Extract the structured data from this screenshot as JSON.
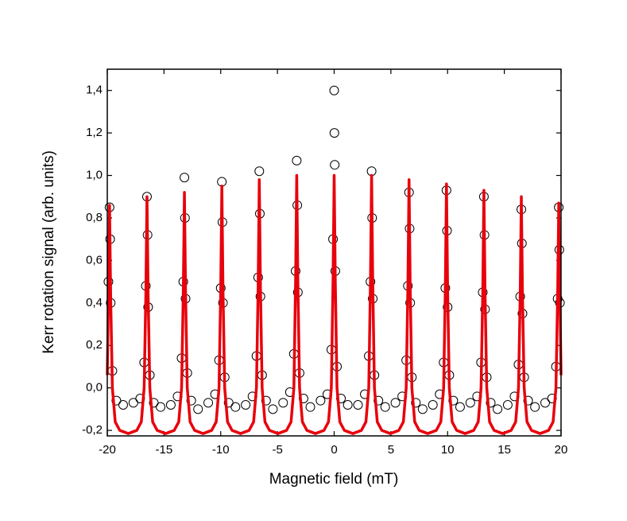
{
  "chart_data": {
    "type": "scatter",
    "x_label": "Magnetic field (mT)",
    "y_label": "Kerr rotation signal (arb. units)",
    "xlim": [
      -20,
      20
    ],
    "ylim": [
      -0.226,
      1.5
    ],
    "xticks": [
      -20,
      -15,
      -10,
      -5,
      0,
      5,
      10,
      15,
      20
    ],
    "yticks": [
      {
        "value": -0.2,
        "label": "-0,2"
      },
      {
        "value": 0,
        "label": "0,0"
      },
      {
        "value": 0.2,
        "label": "0,2"
      },
      {
        "value": 0.4,
        "label": "0,4"
      },
      {
        "value": 0.6,
        "label": "0,6"
      },
      {
        "value": 0.8,
        "label": "0,8"
      },
      {
        "value": 1.0,
        "label": "1,0"
      },
      {
        "value": 1.2,
        "label": "1,2"
      },
      {
        "value": 1.4,
        "label": "1,4"
      }
    ],
    "series": [
      {
        "type": "scatter",
        "color": "#000000",
        "x": [
          -19.9,
          -19.8,
          -19.75,
          -19.7,
          -19.55,
          -19.2,
          -18.6,
          -17.7,
          -17.1,
          -16.75,
          -16.6,
          -16.5,
          -16.45,
          -16.4,
          -16.25,
          -15.9,
          -15.3,
          -14.4,
          -13.8,
          -13.45,
          -13.3,
          -13.2,
          -13.15,
          -13.1,
          -12.95,
          -12.6,
          -12.0,
          -11.1,
          -10.5,
          -10.15,
          -10.0,
          -9.9,
          -9.85,
          -9.8,
          -9.65,
          -9.3,
          -8.7,
          -7.8,
          -7.2,
          -6.85,
          -6.7,
          -6.6,
          -6.55,
          -6.5,
          -6.35,
          -6.0,
          -5.4,
          -4.5,
          -3.9,
          -3.55,
          -3.4,
          -3.3,
          -3.25,
          -3.2,
          -3.05,
          -2.7,
          -2.1,
          -1.2,
          -0.6,
          -0.25,
          -0.1,
          0,
          0.02,
          0.05,
          0.1,
          0.25,
          0.6,
          1.2,
          2.1,
          2.7,
          3.05,
          3.2,
          3.3,
          3.35,
          3.4,
          3.55,
          3.9,
          4.5,
          5.4,
          6.0,
          6.35,
          6.5,
          6.6,
          6.65,
          6.7,
          6.85,
          7.2,
          7.8,
          8.7,
          9.3,
          9.65,
          9.8,
          9.9,
          9.95,
          10.0,
          10.15,
          10.5,
          11.1,
          12.0,
          12.6,
          12.95,
          13.1,
          13.2,
          13.25,
          13.3,
          13.45,
          13.8,
          14.4,
          15.3,
          15.9,
          16.25,
          16.4,
          16.5,
          16.55,
          16.6,
          16.75,
          17.1,
          17.7,
          18.6,
          19.2,
          19.55,
          19.7,
          19.8,
          19.85,
          19.9
        ],
        "values": [
          0.5,
          0.85,
          0.7,
          0.4,
          0.08,
          -0.06,
          -0.08,
          -0.07,
          -0.05,
          0.12,
          0.48,
          0.9,
          0.72,
          0.38,
          0.06,
          -0.07,
          -0.09,
          -0.08,
          -0.04,
          0.14,
          0.5,
          0.99,
          0.8,
          0.42,
          0.07,
          -0.06,
          -0.1,
          -0.07,
          -0.03,
          0.13,
          0.47,
          0.97,
          0.78,
          0.4,
          0.05,
          -0.07,
          -0.09,
          -0.08,
          -0.04,
          0.15,
          0.52,
          1.02,
          0.82,
          0.43,
          0.06,
          -0.06,
          -0.1,
          -0.07,
          -0.02,
          0.16,
          0.55,
          1.07,
          0.86,
          0.45,
          0.07,
          -0.05,
          -0.09,
          -0.06,
          -0.03,
          0.18,
          0.7,
          1.4,
          1.2,
          1.05,
          0.55,
          0.1,
          -0.05,
          -0.08,
          -0.08,
          -0.03,
          0.15,
          0.5,
          1.02,
          0.8,
          0.42,
          0.06,
          -0.06,
          -0.09,
          -0.07,
          -0.04,
          0.13,
          0.48,
          0.92,
          0.75,
          0.4,
          0.05,
          -0.07,
          -0.1,
          -0.08,
          -0.03,
          0.12,
          0.47,
          0.93,
          0.74,
          0.38,
          0.06,
          -0.06,
          -0.09,
          -0.07,
          -0.04,
          0.12,
          0.45,
          0.9,
          0.72,
          0.37,
          0.05,
          -0.07,
          -0.1,
          -0.08,
          -0.04,
          0.11,
          0.43,
          0.84,
          0.68,
          0.35,
          0.05,
          -0.06,
          -0.09,
          -0.07,
          -0.05,
          0.1,
          0.42,
          0.85,
          0.65,
          0.4
        ]
      },
      {
        "type": "line",
        "color": "#e8000b",
        "x": [
          -20,
          -19.9,
          -19.8,
          -19.7,
          -19.55,
          -19.3,
          -18.9,
          -18.15,
          -17.4,
          -17.0,
          -16.75,
          -16.6,
          -16.5,
          -16.4,
          -16.25,
          -16.0,
          -15.6,
          -14.85,
          -14.1,
          -13.7,
          -13.45,
          -13.3,
          -13.2,
          -13.1,
          -12.95,
          -12.7,
          -12.3,
          -11.55,
          -10.8,
          -10.4,
          -10.15,
          -10.0,
          -9.9,
          -9.8,
          -9.65,
          -9.4,
          -9.0,
          -8.25,
          -7.5,
          -7.1,
          -6.85,
          -6.7,
          -6.6,
          -6.5,
          -6.35,
          -6.1,
          -5.7,
          -4.95,
          -4.2,
          -3.8,
          -3.55,
          -3.4,
          -3.3,
          -3.2,
          -3.05,
          -2.8,
          -2.4,
          -1.65,
          -0.9,
          -0.5,
          -0.25,
          -0.1,
          0,
          0.1,
          0.25,
          0.5,
          0.9,
          1.65,
          2.4,
          2.8,
          3.05,
          3.2,
          3.3,
          3.4,
          3.55,
          3.8,
          4.2,
          4.95,
          5.7,
          6.1,
          6.35,
          6.5,
          6.6,
          6.7,
          6.85,
          7.1,
          7.5,
          8.25,
          9.0,
          9.4,
          9.65,
          9.8,
          9.9,
          10.0,
          10.15,
          10.4,
          10.8,
          11.55,
          12.3,
          12.7,
          12.95,
          13.1,
          13.2,
          13.3,
          13.45,
          13.7,
          14.1,
          14.85,
          15.6,
          16.0,
          16.25,
          16.4,
          16.5,
          16.6,
          16.75,
          17.0,
          17.4,
          18.15,
          18.9,
          19.3,
          19.55,
          19.7,
          19.8,
          19.9,
          20
        ],
        "values": [
          0.06,
          0.42,
          0.86,
          0.42,
          0.0,
          -0.16,
          -0.2,
          -0.215,
          -0.2,
          -0.16,
          0.0,
          0.44,
          0.9,
          0.44,
          0.0,
          -0.16,
          -0.2,
          -0.215,
          -0.2,
          -0.16,
          0.0,
          0.45,
          0.92,
          0.45,
          0.0,
          -0.16,
          -0.2,
          -0.215,
          -0.2,
          -0.16,
          0.0,
          0.46,
          0.95,
          0.46,
          0.0,
          -0.16,
          -0.2,
          -0.215,
          -0.2,
          -0.16,
          0.0,
          0.48,
          0.98,
          0.48,
          0.0,
          -0.16,
          -0.2,
          -0.215,
          -0.2,
          -0.16,
          0.0,
          0.5,
          1.0,
          0.5,
          0.0,
          -0.16,
          -0.2,
          -0.215,
          -0.2,
          -0.16,
          0.0,
          0.5,
          1.0,
          0.5,
          0.0,
          -0.16,
          -0.2,
          -0.215,
          -0.2,
          -0.16,
          0.0,
          0.5,
          1.0,
          0.5,
          0.0,
          -0.16,
          -0.2,
          -0.215,
          -0.2,
          -0.16,
          0.0,
          0.48,
          0.98,
          0.48,
          0.0,
          -0.16,
          -0.2,
          -0.215,
          -0.2,
          -0.16,
          0.0,
          0.47,
          0.96,
          0.47,
          0.0,
          -0.16,
          -0.2,
          -0.215,
          -0.2,
          -0.16,
          0.0,
          0.45,
          0.93,
          0.45,
          0.0,
          -0.16,
          -0.2,
          -0.215,
          -0.2,
          -0.16,
          0.0,
          0.44,
          0.9,
          0.44,
          0.0,
          -0.16,
          -0.2,
          -0.215,
          -0.2,
          -0.16,
          0.0,
          0.43,
          0.87,
          0.43,
          0.06
        ]
      }
    ]
  }
}
